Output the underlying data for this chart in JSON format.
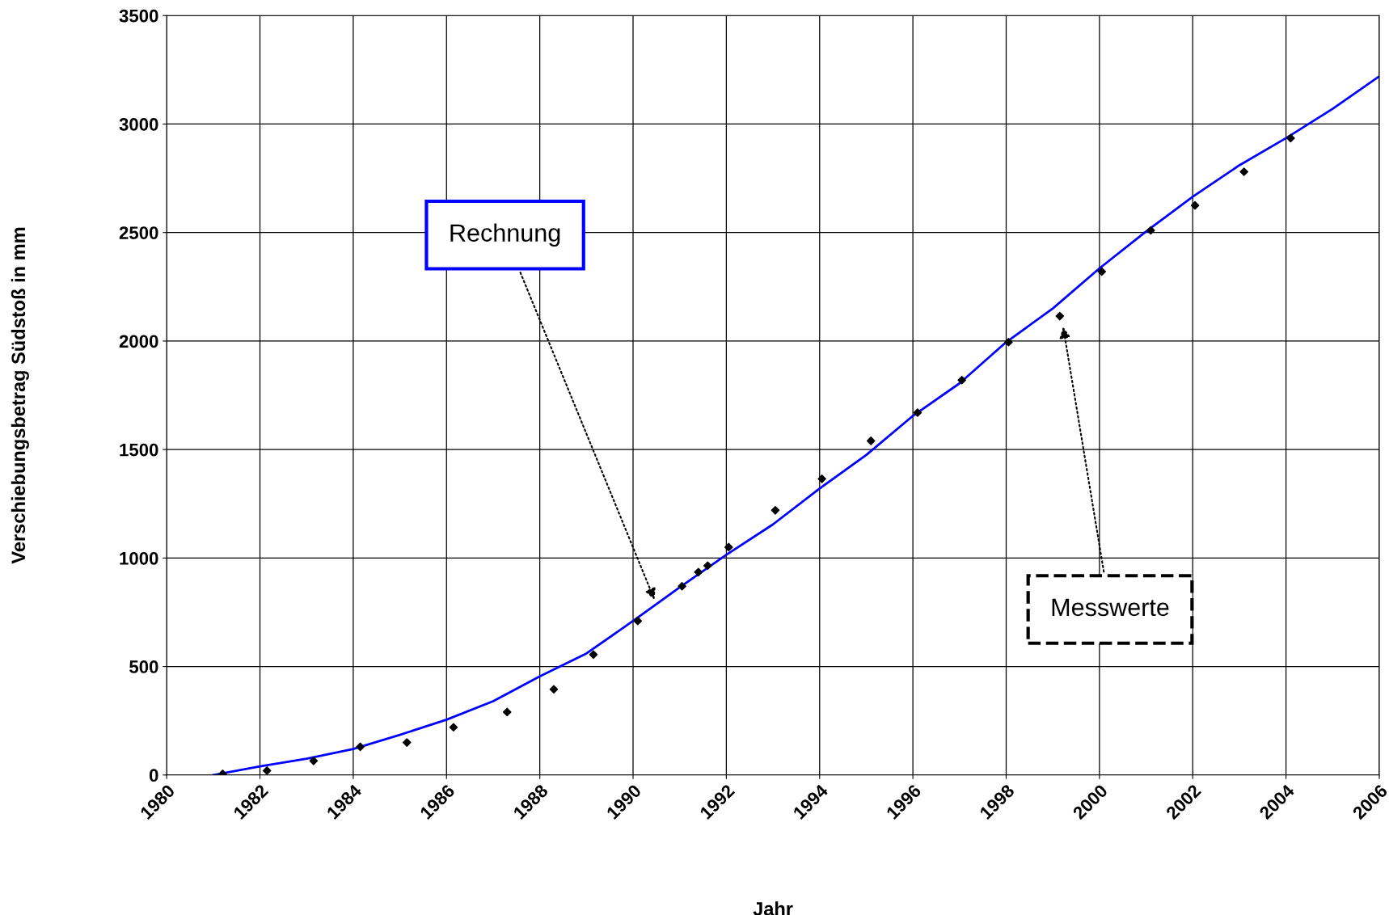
{
  "chart_data": {
    "type": "line",
    "xlabel": "Jahr",
    "ylabel": "Verschiebungsbetrag Südstoß in mm",
    "xlim": [
      1980,
      2006
    ],
    "xticks": [
      1980,
      1982,
      1984,
      1986,
      1988,
      1990,
      1992,
      1994,
      1996,
      1998,
      2000,
      2002,
      2004,
      2006
    ],
    "ylim": [
      0,
      3500
    ],
    "yticks": [
      0,
      500,
      1000,
      1500,
      2000,
      2500,
      3000,
      3500
    ],
    "grid": true,
    "legend": false,
    "series": [
      {
        "color": "#0000ff",
        "marker": "none",
        "x": [
          1981,
          1982,
          1983,
          1984,
          1985,
          1986,
          1987,
          1988,
          1989,
          1990,
          1991,
          1992,
          1993,
          1994,
          1995,
          1996,
          1997,
          1998,
          1999,
          2000,
          2001,
          2002,
          2003,
          2004,
          2005,
          2006
        ],
        "values": [
          0,
          40,
          75,
          120,
          185,
          255,
          340,
          455,
          560,
          710,
          865,
          1015,
          1155,
          1320,
          1475,
          1655,
          1805,
          1995,
          2150,
          2335,
          2505,
          2665,
          2810,
          2935,
          3070,
          3220
        ]
      },
      {
        "type": "scatter",
        "color": "#000000",
        "marker": "diamond",
        "x": [
          1981.2,
          1982.15,
          1983.15,
          1984.15,
          1985.15,
          1986.15,
          1987.3,
          1988.3,
          1989.15,
          1990.1,
          1991.05,
          1991.4,
          1991.6,
          1992.05,
          1993.05,
          1994.05,
          1995.1,
          1996.1,
          1997.05,
          1998.05,
          1999.15,
          2000.05,
          2001.1,
          2002.05,
          2003.1,
          2004.1
        ],
        "values": [
          5,
          20,
          65,
          130,
          150,
          220,
          290,
          395,
          555,
          710,
          870,
          935,
          965,
          1050,
          1220,
          1365,
          1540,
          1670,
          1820,
          1995,
          2115,
          2320,
          2510,
          2625,
          2780,
          2935
        ]
      }
    ],
    "annotations": [
      "Rechnung",
      "Messwerte"
    ]
  }
}
